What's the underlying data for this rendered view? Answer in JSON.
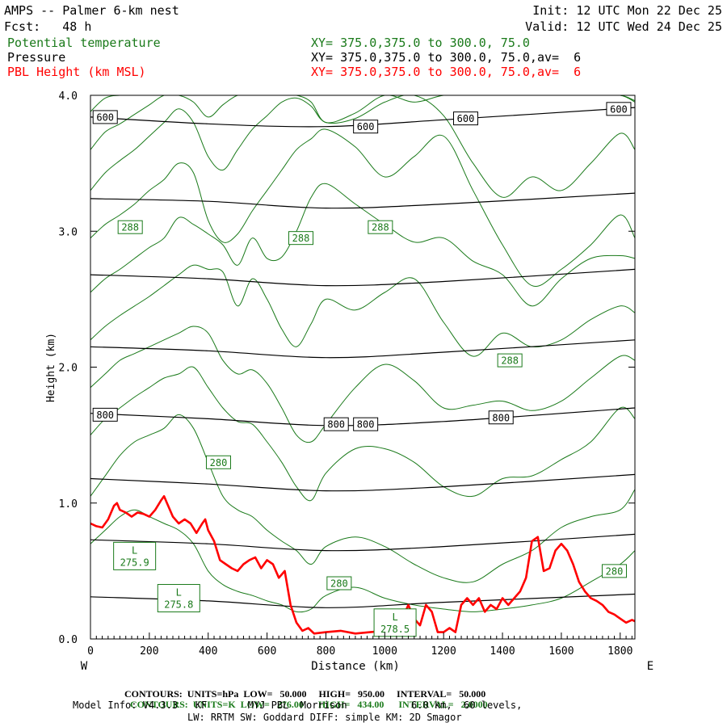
{
  "header": {
    "model_title": "AMPS -- Palmer 6-km nest",
    "forecast": "Fcst:   48 h",
    "init": "Init: 12 UTC Mon 22 Dec 25",
    "valid": "Valid: 12 UTC Wed 24 Dec 25",
    "fields": [
      {
        "name": "Potential temperature",
        "xy": "XY= 375.0,375.0 to 300.0, 75.0",
        "color": "#1a7a1a"
      },
      {
        "name": "Pressure",
        "xy": "XY= 375.0,375.0 to 300.0, 75.0,av=  6",
        "color": "#000000"
      },
      {
        "name": "PBL Height (km MSL)",
        "xy": "XY= 375.0,375.0 to 300.0, 75.0,av=  6",
        "color": "#ff0000"
      }
    ]
  },
  "footer": {
    "pressure_contours": {
      "label": "CONTOURS:",
      "units": "UNITS=hPa",
      "low": "LOW=   50.000",
      "high": "HIGH=   950.00",
      "interval": "INTERVAL=   50.000"
    },
    "theta_contours": {
      "label": "CONTOURS:",
      "units": "UNITS=K",
      "low": "LOW=   276.00",
      "high": "HIGH=   434.00",
      "interval": "INTERVAL=   2.0000"
    },
    "model_info_1": "Model Info: V4.3.3   KF       MYJ PBL  Morrison           6.0 km,  60 levels,",
    "model_info_2": "LW: RRTM SW: Goddard DIFF: simple KM: 2D Smagor"
  },
  "chart_data": {
    "type": "line",
    "xlabel": "Distance (km)",
    "ylabel": "Height (km)",
    "xlim": [
      0,
      1850
    ],
    "ylim": [
      0,
      4.0
    ],
    "x_ticks": [
      0,
      200,
      400,
      600,
      800,
      1000,
      1200,
      1400,
      1600,
      1800
    ],
    "y_ticks": [
      0.0,
      1.0,
      2.0,
      3.0,
      4.0
    ],
    "y_tick_labels": [
      "0.0",
      "1.0",
      "2.0",
      "3.0",
      "4.0"
    ],
    "x_end_labels": {
      "left": "W",
      "right": "E"
    },
    "colors": {
      "pressure": "#000000",
      "theta": "#1a7a1a",
      "pbl": "#ff0000"
    },
    "pressure_contours": [
      {
        "hPa": 600,
        "x": [
          0,
          400,
          800,
          1200,
          1850
        ],
        "y": [
          3.84,
          3.79,
          3.77,
          3.82,
          3.91
        ]
      },
      {
        "hPa": 650,
        "x": [
          0,
          400,
          800,
          1200,
          1850
        ],
        "y": [
          3.24,
          3.22,
          3.17,
          3.2,
          3.28
        ]
      },
      {
        "hPa": 700,
        "x": [
          0,
          400,
          800,
          1200,
          1850
        ],
        "y": [
          2.68,
          2.65,
          2.6,
          2.63,
          2.72
        ]
      },
      {
        "hPa": 750,
        "x": [
          0,
          400,
          800,
          1200,
          1850
        ],
        "y": [
          2.15,
          2.12,
          2.07,
          2.11,
          2.2
        ]
      },
      {
        "hPa": 800,
        "x": [
          0,
          400,
          800,
          1200,
          1850
        ],
        "y": [
          1.66,
          1.62,
          1.57,
          1.6,
          1.7
        ]
      },
      {
        "hPa": 850,
        "x": [
          0,
          400,
          800,
          1200,
          1850
        ],
        "y": [
          1.18,
          1.14,
          1.09,
          1.12,
          1.21
        ]
      },
      {
        "hPa": 900,
        "x": [
          0,
          400,
          800,
          1200,
          1850
        ],
        "y": [
          0.73,
          0.7,
          0.65,
          0.68,
          0.77
        ]
      },
      {
        "hPa": 950,
        "x": [
          0,
          400,
          800,
          1200,
          1850
        ],
        "y": [
          0.31,
          0.28,
          0.23,
          0.27,
          0.33
        ]
      }
    ],
    "pressure_labels": [
      {
        "text": "600",
        "x": 50,
        "y": 3.84
      },
      {
        "text": "600",
        "x": 935,
        "y": 3.77
      },
      {
        "text": "600",
        "x": 1275,
        "y": 3.83
      },
      {
        "text": "600",
        "x": 1795,
        "y": 3.9
      },
      {
        "text": "800",
        "x": 50,
        "y": 1.65
      },
      {
        "text": "800",
        "x": 835,
        "y": 1.58
      },
      {
        "text": "800",
        "x": 935,
        "y": 1.58
      },
      {
        "text": "800",
        "x": 1395,
        "y": 1.63
      }
    ],
    "theta_contours": [
      {
        "x": [
          0,
          50,
          100,
          150,
          200,
          250,
          300,
          350,
          400,
          450,
          500,
          550,
          600,
          650,
          700,
          750,
          800,
          900,
          1000,
          1100,
          1200,
          1300,
          1400,
          1500,
          1600,
          1700,
          1800,
          1850
        ],
        "y": [
          3.88,
          3.98,
          4.0,
          4.0,
          4.0,
          4.0,
          4.0,
          4.0,
          4.0,
          4.0,
          4.0,
          4.0,
          4.0,
          4.0,
          4.0,
          4.0,
          4.0,
          4.0,
          4.0,
          4.0,
          4.0,
          4.0,
          4.0,
          4.0,
          4.0,
          4.0,
          4.0,
          3.95
        ]
      },
      {
        "x": [
          0,
          50,
          100,
          150,
          200,
          250,
          300,
          350,
          400,
          450,
          500,
          550,
          600,
          650,
          700,
          750,
          800,
          900,
          1000,
          1100,
          1200,
          1300,
          1400,
          1500,
          1600,
          1700,
          1800,
          1850
        ],
        "y": [
          3.6,
          3.73,
          3.79,
          3.86,
          3.93,
          4.0,
          4.0,
          3.95,
          3.84,
          3.93,
          4.0,
          4.0,
          4.0,
          4.0,
          4.0,
          3.95,
          3.8,
          3.87,
          4.0,
          3.95,
          4.0,
          4.0,
          4.0,
          4.0,
          4.0,
          4.0,
          4.0,
          3.96
        ]
      },
      {
        "x": [
          0,
          50,
          100,
          150,
          200,
          250,
          300,
          350,
          400,
          450,
          500,
          550,
          600,
          650,
          700,
          750,
          800,
          900,
          1000,
          1100,
          1200,
          1300,
          1400,
          1500,
          1600,
          1700,
          1800,
          1850
        ],
        "y": [
          3.3,
          3.43,
          3.52,
          3.6,
          3.7,
          3.8,
          3.9,
          3.8,
          3.55,
          3.45,
          3.6,
          3.75,
          3.85,
          3.95,
          3.98,
          3.92,
          3.8,
          3.83,
          3.95,
          4.0,
          3.85,
          3.5,
          3.25,
          3.4,
          3.3,
          3.5,
          3.72,
          3.6
        ]
      },
      {
        "x": [
          0,
          50,
          100,
          150,
          200,
          250,
          300,
          350,
          400,
          450,
          500,
          550,
          600,
          650,
          700,
          750,
          800,
          900,
          1000,
          1100,
          1200,
          1300,
          1400,
          1500,
          1600,
          1700,
          1800,
          1850
        ],
        "y": [
          2.95,
          3.05,
          3.12,
          3.2,
          3.3,
          3.38,
          3.5,
          3.43,
          3.08,
          2.92,
          2.98,
          3.15,
          3.3,
          3.45,
          3.6,
          3.68,
          3.75,
          3.62,
          3.4,
          3.55,
          3.7,
          3.3,
          2.9,
          2.6,
          2.72,
          2.9,
          3.12,
          2.95
        ]
      },
      {
        "x": [
          0,
          50,
          100,
          150,
          200,
          250,
          300,
          350,
          400,
          450,
          500,
          550,
          600,
          650,
          700,
          750,
          800,
          900,
          1000,
          1100,
          1200,
          1300,
          1400,
          1500,
          1600,
          1700,
          1800,
          1850
        ],
        "y": [
          2.55,
          2.65,
          2.72,
          2.8,
          2.88,
          2.95,
          3.1,
          3.05,
          2.98,
          2.9,
          2.75,
          2.95,
          2.8,
          2.81,
          3.0,
          3.25,
          3.35,
          3.2,
          3.05,
          2.92,
          2.95,
          2.78,
          2.68,
          2.45,
          2.65,
          2.8,
          2.82,
          2.8
        ]
      },
      {
        "x": [
          0,
          50,
          100,
          150,
          200,
          250,
          300,
          350,
          400,
          450,
          500,
          550,
          600,
          650,
          700,
          750,
          800,
          900,
          1000,
          1100,
          1200,
          1300,
          1400,
          1500,
          1600,
          1700,
          1800,
          1850
        ],
        "y": [
          2.2,
          2.3,
          2.38,
          2.45,
          2.52,
          2.6,
          2.68,
          2.75,
          2.72,
          2.7,
          2.45,
          2.65,
          2.5,
          2.28,
          2.15,
          2.32,
          2.5,
          2.42,
          2.55,
          2.65,
          2.33,
          2.08,
          2.25,
          2.15,
          2.2,
          2.35,
          2.45,
          2.4
        ]
      },
      {
        "x": [
          0,
          50,
          100,
          150,
          200,
          250,
          300,
          350,
          400,
          450,
          500,
          550,
          600,
          650,
          700,
          750,
          800,
          900,
          1000,
          1100,
          1200,
          1300,
          1400,
          1500,
          1600,
          1700,
          1800,
          1850
        ],
        "y": [
          1.85,
          1.95,
          2.05,
          2.1,
          2.15,
          2.2,
          2.25,
          2.3,
          2.25,
          2.05,
          1.95,
          1.98,
          1.88,
          1.7,
          1.5,
          1.45,
          1.58,
          1.85,
          2.02,
          1.9,
          1.7,
          1.72,
          1.75,
          1.68,
          1.75,
          1.92,
          2.08,
          2.05
        ]
      },
      {
        "x": [
          0,
          50,
          100,
          150,
          200,
          250,
          300,
          350,
          400,
          450,
          500,
          550,
          600,
          650,
          700,
          750,
          800,
          900,
          1000,
          1100,
          1200,
          1300,
          1400,
          1500,
          1600,
          1700,
          1800,
          1850
        ],
        "y": [
          1.5,
          1.62,
          1.7,
          1.78,
          1.85,
          1.92,
          1.95,
          2.0,
          1.85,
          1.7,
          1.6,
          1.58,
          1.45,
          1.3,
          1.12,
          1.02,
          1.22,
          1.4,
          1.4,
          1.3,
          1.12,
          1.05,
          1.18,
          1.2,
          1.32,
          1.45,
          1.7,
          1.62
        ]
      },
      {
        "x": [
          0,
          50,
          100,
          150,
          200,
          250,
          300,
          350,
          400,
          450,
          500,
          550,
          600,
          650,
          700,
          750,
          800,
          900,
          1000,
          1100,
          1200,
          1300,
          1400,
          1500,
          1600,
          1700,
          1800,
          1850
        ],
        "y": [
          1.05,
          1.2,
          1.35,
          1.45,
          1.5,
          1.55,
          1.65,
          1.55,
          1.3,
          1.05,
          0.95,
          0.9,
          0.8,
          0.72,
          0.65,
          0.55,
          0.68,
          0.75,
          0.68,
          0.55,
          0.45,
          0.42,
          0.55,
          0.65,
          0.82,
          0.9,
          0.95,
          1.1
        ]
      },
      {
        "x": [
          0,
          50,
          100,
          150,
          200,
          250,
          300,
          350,
          400,
          450,
          500,
          550,
          600,
          650,
          700,
          750,
          800,
          900,
          1000,
          1100,
          1200,
          1300,
          1400,
          1500,
          1600,
          1700,
          1800,
          1850
        ],
        "y": [
          0.7,
          0.8,
          0.9,
          0.95,
          0.9,
          0.85,
          0.8,
          0.7,
          0.5,
          0.4,
          0.35,
          0.32,
          0.28,
          0.25,
          0.2,
          0.22,
          0.32,
          0.38,
          0.3,
          0.25,
          0.22,
          0.2,
          0.22,
          0.25,
          0.3,
          0.42,
          0.55,
          0.65
        ]
      }
    ],
    "theta_labels": [
      {
        "text": "288",
        "x": 135,
        "y": 3.03
      },
      {
        "text": "288",
        "x": 715,
        "y": 2.95
      },
      {
        "text": "288",
        "x": 985,
        "y": 3.03
      },
      {
        "text": "288",
        "x": 1425,
        "y": 2.05
      },
      {
        "text": "280",
        "x": 435,
        "y": 1.3
      },
      {
        "text": "280",
        "x": 845,
        "y": 0.41
      },
      {
        "text": "280",
        "x": 1780,
        "y": 0.5
      }
    ],
    "lows": [
      {
        "letter": "L",
        "value": "275.9",
        "x": 150,
        "y": 0.61
      },
      {
        "letter": "L",
        "value": "275.8",
        "x": 300,
        "y": 0.3
      },
      {
        "letter": "L",
        "value": "278.5",
        "x": 1035,
        "y": 0.12
      }
    ],
    "pbl": {
      "x": [
        0,
        20,
        40,
        60,
        80,
        90,
        100,
        120,
        140,
        160,
        180,
        200,
        220,
        240,
        250,
        260,
        280,
        300,
        320,
        340,
        360,
        380,
        390,
        400,
        420,
        440,
        460,
        480,
        500,
        520,
        540,
        560,
        580,
        600,
        620,
        640,
        660,
        680,
        700,
        720,
        740,
        760,
        800,
        850,
        900,
        950,
        1000,
        1050,
        1080,
        1100,
        1120,
        1140,
        1160,
        1180,
        1200,
        1220,
        1240,
        1260,
        1280,
        1300,
        1320,
        1340,
        1360,
        1380,
        1400,
        1420,
        1440,
        1460,
        1480,
        1500,
        1520,
        1540,
        1560,
        1580,
        1600,
        1620,
        1640,
        1660,
        1680,
        1700,
        1720,
        1740,
        1760,
        1780,
        1800,
        1820,
        1840,
        1850
      ],
      "y": [
        0.85,
        0.83,
        0.82,
        0.88,
        0.98,
        1.0,
        0.95,
        0.93,
        0.9,
        0.93,
        0.92,
        0.9,
        0.95,
        1.02,
        1.05,
        1.0,
        0.9,
        0.85,
        0.88,
        0.85,
        0.78,
        0.85,
        0.88,
        0.8,
        0.72,
        0.58,
        0.55,
        0.52,
        0.5,
        0.55,
        0.58,
        0.6,
        0.52,
        0.58,
        0.55,
        0.45,
        0.5,
        0.25,
        0.12,
        0.06,
        0.08,
        0.04,
        0.05,
        0.06,
        0.04,
        0.05,
        0.06,
        0.1,
        0.25,
        0.15,
        0.1,
        0.25,
        0.2,
        0.05,
        0.05,
        0.08,
        0.05,
        0.25,
        0.3,
        0.25,
        0.3,
        0.2,
        0.25,
        0.22,
        0.3,
        0.25,
        0.3,
        0.35,
        0.45,
        0.72,
        0.75,
        0.5,
        0.52,
        0.65,
        0.7,
        0.65,
        0.55,
        0.42,
        0.35,
        0.3,
        0.28,
        0.25,
        0.2,
        0.18,
        0.15,
        0.12,
        0.14,
        0.13
      ]
    }
  }
}
